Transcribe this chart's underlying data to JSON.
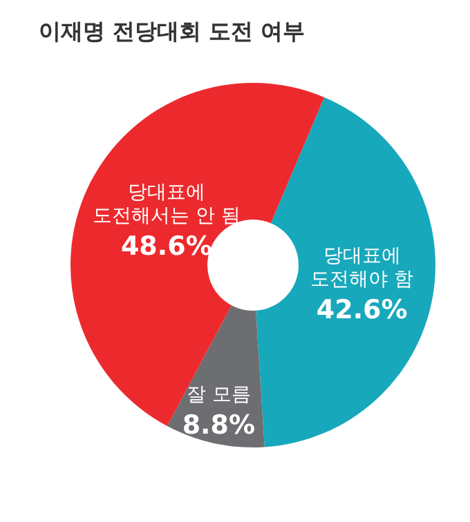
{
  "chart_data": {
    "type": "donut",
    "title": "이재명 전당대회 도전 여부",
    "categories": [
      "당대표에\n도전해야 함",
      "잘 모름",
      "당대표에\n도전해서는 안 됨"
    ],
    "values": [
      42.6,
      8.8,
      48.6
    ],
    "colors": [
      "#17a8bb",
      "#6d6e71",
      "#ec2a2e"
    ],
    "value_labels": [
      "42.6%",
      "8.8%",
      "48.6%"
    ]
  }
}
